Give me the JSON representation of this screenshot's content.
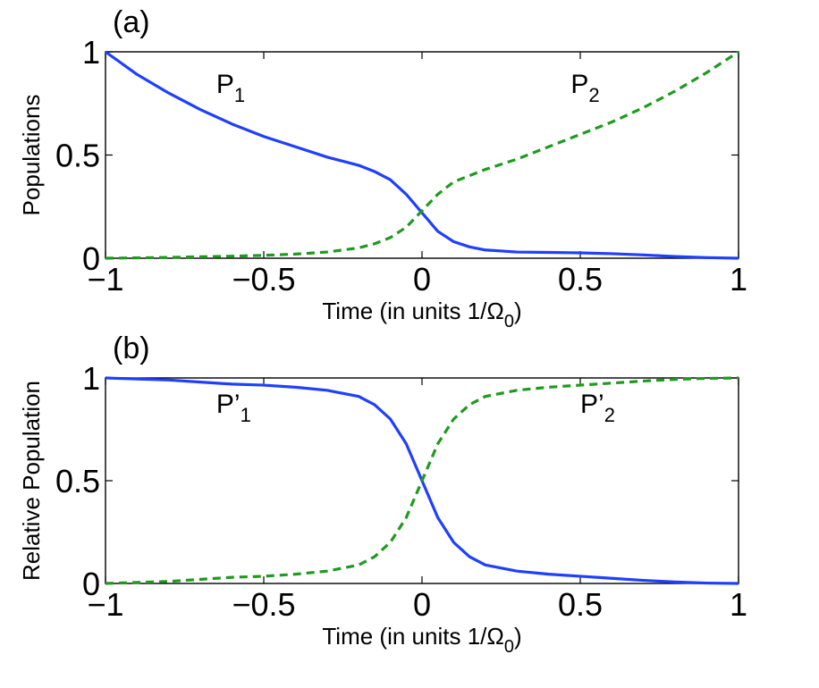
{
  "chart_data": [
    {
      "type": "line",
      "panel_label": "(a)",
      "xlabel": "Time (in units 1/Ω",
      "xlabel_sub": "0",
      "xlabel_tail": ")",
      "ylabel": "Populations",
      "xlim": [
        -1,
        1
      ],
      "ylim": [
        0,
        1
      ],
      "xticks": [
        -1,
        -0.5,
        0,
        0.5,
        1
      ],
      "xtick_labels": [
        "−1",
        "−0.5",
        "0",
        "0.5",
        "1"
      ],
      "yticks": [
        0,
        0.5,
        1
      ],
      "ytick_labels": [
        "0",
        "0.5",
        "1"
      ],
      "grid": false,
      "series": [
        {
          "name": "P",
          "name_sub": "1",
          "color": "#1f3fff",
          "style": "solid",
          "label_at": [
            -0.65,
            0.8
          ],
          "x": [
            -1,
            -0.9,
            -0.8,
            -0.7,
            -0.6,
            -0.5,
            -0.4,
            -0.3,
            -0.2,
            -0.15,
            -0.1,
            -0.05,
            0,
            0.05,
            0.1,
            0.15,
            0.2,
            0.3,
            0.4,
            0.5,
            0.6,
            0.7,
            0.8,
            0.9,
            1
          ],
          "y": [
            1.0,
            0.89,
            0.8,
            0.72,
            0.65,
            0.59,
            0.54,
            0.49,
            0.45,
            0.42,
            0.38,
            0.31,
            0.22,
            0.13,
            0.08,
            0.055,
            0.04,
            0.03,
            0.028,
            0.026,
            0.022,
            0.016,
            0.008,
            0.003,
            0.0
          ]
        },
        {
          "name": "P",
          "name_sub": "2",
          "color": "#1e9a1e",
          "style": "dashed",
          "label_at": [
            0.47,
            0.8
          ],
          "x": [
            -1,
            -0.9,
            -0.8,
            -0.7,
            -0.6,
            -0.5,
            -0.4,
            -0.3,
            -0.2,
            -0.15,
            -0.1,
            -0.05,
            0,
            0.05,
            0.1,
            0.15,
            0.2,
            0.3,
            0.4,
            0.5,
            0.6,
            0.7,
            0.8,
            0.9,
            1
          ],
          "y": [
            0.0,
            0.002,
            0.004,
            0.007,
            0.01,
            0.014,
            0.02,
            0.03,
            0.05,
            0.07,
            0.1,
            0.15,
            0.23,
            0.31,
            0.37,
            0.4,
            0.43,
            0.48,
            0.54,
            0.6,
            0.66,
            0.73,
            0.81,
            0.9,
            1.0
          ]
        }
      ]
    },
    {
      "type": "line",
      "panel_label": "(b)",
      "xlabel": "Time (in units 1/Ω",
      "xlabel_sub": "0",
      "xlabel_tail": ")",
      "ylabel": "Relative Population",
      "xlim": [
        -1,
        1
      ],
      "ylim": [
        0,
        1
      ],
      "xticks": [
        -1,
        -0.5,
        0,
        0.5,
        1
      ],
      "xtick_labels": [
        "−1",
        "−0.5",
        "0",
        "0.5",
        "1"
      ],
      "yticks": [
        0,
        0.5,
        1
      ],
      "ytick_labels": [
        "0",
        "0.5",
        "1"
      ],
      "grid": false,
      "series": [
        {
          "name": "P’",
          "name_sub": "1",
          "color": "#1f3fff",
          "style": "solid",
          "label_at": [
            -0.65,
            0.83
          ],
          "x": [
            -1,
            -0.9,
            -0.8,
            -0.7,
            -0.6,
            -0.5,
            -0.4,
            -0.3,
            -0.2,
            -0.15,
            -0.1,
            -0.05,
            0,
            0.05,
            0.1,
            0.15,
            0.2,
            0.3,
            0.4,
            0.5,
            0.6,
            0.7,
            0.8,
            0.9,
            1
          ],
          "y": [
            1.0,
            0.995,
            0.99,
            0.98,
            0.97,
            0.965,
            0.955,
            0.94,
            0.91,
            0.87,
            0.8,
            0.68,
            0.5,
            0.32,
            0.2,
            0.13,
            0.09,
            0.06,
            0.045,
            0.035,
            0.025,
            0.015,
            0.007,
            0.002,
            0.0
          ]
        },
        {
          "name": "P’",
          "name_sub": "2",
          "color": "#1e9a1e",
          "style": "dashed",
          "label_at": [
            0.5,
            0.83
          ],
          "x": [
            -1,
            -0.9,
            -0.8,
            -0.7,
            -0.6,
            -0.5,
            -0.4,
            -0.3,
            -0.2,
            -0.15,
            -0.1,
            -0.05,
            0,
            0.05,
            0.1,
            0.15,
            0.2,
            0.3,
            0.4,
            0.5,
            0.6,
            0.7,
            0.8,
            0.9,
            1
          ],
          "y": [
            0.0,
            0.005,
            0.01,
            0.02,
            0.03,
            0.035,
            0.045,
            0.06,
            0.09,
            0.13,
            0.2,
            0.32,
            0.5,
            0.68,
            0.8,
            0.87,
            0.91,
            0.94,
            0.955,
            0.965,
            0.975,
            0.985,
            0.993,
            0.998,
            1.0
          ]
        }
      ]
    }
  ]
}
